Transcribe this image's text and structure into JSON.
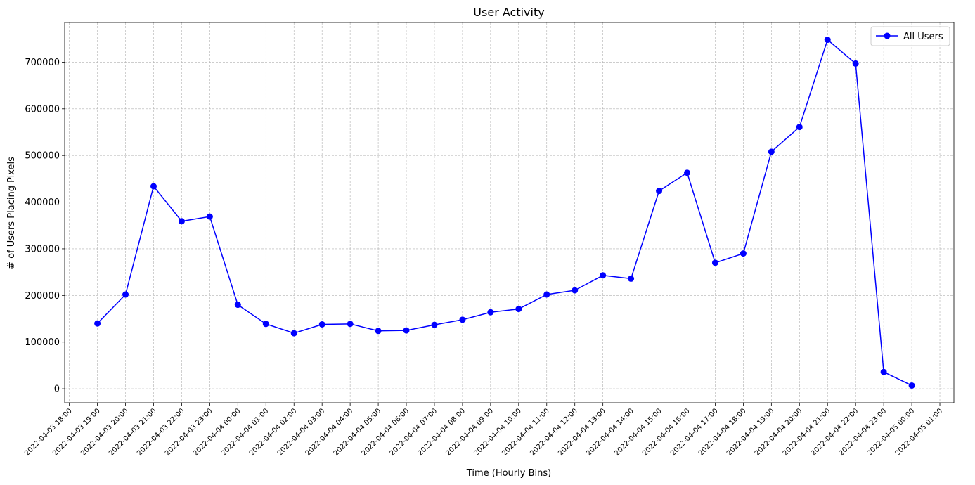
{
  "chart_data": {
    "type": "line",
    "title": "User Activity",
    "xlabel": "Time (Hourly Bins)",
    "ylabel": "# of Users Placing Pixels",
    "x": [
      "2022-04-03 19:00",
      "2022-04-03 20:00",
      "2022-04-03 21:00",
      "2022-04-03 22:00",
      "2022-04-03 23:00",
      "2022-04-04 00:00",
      "2022-04-04 01:00",
      "2022-04-04 02:00",
      "2022-04-04 03:00",
      "2022-04-04 04:00",
      "2022-04-04 05:00",
      "2022-04-04 06:00",
      "2022-04-04 07:00",
      "2022-04-04 08:00",
      "2022-04-04 09:00",
      "2022-04-04 10:00",
      "2022-04-04 11:00",
      "2022-04-04 12:00",
      "2022-04-04 13:00",
      "2022-04-04 14:00",
      "2022-04-04 15:00",
      "2022-04-04 16:00",
      "2022-04-04 17:00",
      "2022-04-04 18:00",
      "2022-04-04 19:00",
      "2022-04-04 20:00",
      "2022-04-04 21:00",
      "2022-04-04 22:00",
      "2022-04-04 23:00",
      "2022-04-05 00:00"
    ],
    "x_tick_labels": [
      "2022-04-03 18:00",
      "2022-04-03 19:00",
      "2022-04-03 20:00",
      "2022-04-03 21:00",
      "2022-04-03 22:00",
      "2022-04-03 23:00",
      "2022-04-04 00:00",
      "2022-04-04 01:00",
      "2022-04-04 02:00",
      "2022-04-04 03:00",
      "2022-04-04 04:00",
      "2022-04-04 05:00",
      "2022-04-04 06:00",
      "2022-04-04 07:00",
      "2022-04-04 08:00",
      "2022-04-04 09:00",
      "2022-04-04 10:00",
      "2022-04-04 11:00",
      "2022-04-04 12:00",
      "2022-04-04 13:00",
      "2022-04-04 14:00",
      "2022-04-04 15:00",
      "2022-04-04 16:00",
      "2022-04-04 17:00",
      "2022-04-04 18:00",
      "2022-04-04 19:00",
      "2022-04-04 20:00",
      "2022-04-04 21:00",
      "2022-04-04 22:00",
      "2022-04-04 23:00",
      "2022-04-05 00:00",
      "2022-04-05 01:00"
    ],
    "x_range": [
      "2022-04-03 17:50",
      "2022-04-05 01:30"
    ],
    "series": [
      {
        "name": "All Users",
        "color": "#0000ff",
        "marker": "circle",
        "values": [
          140000,
          202000,
          434000,
          359000,
          369000,
          180000,
          139000,
          119000,
          138000,
          139000,
          124000,
          125000,
          137000,
          148000,
          164000,
          171000,
          202000,
          211000,
          243000,
          236000,
          424000,
          463000,
          270000,
          290000,
          508000,
          561000,
          748000,
          697000,
          36000,
          7000
        ]
      }
    ],
    "y_ticks": [
      0,
      100000,
      200000,
      300000,
      400000,
      500000,
      600000,
      700000
    ],
    "ylim": [
      -30000,
      785000
    ],
    "grid": true,
    "legend_position": "top-right"
  }
}
